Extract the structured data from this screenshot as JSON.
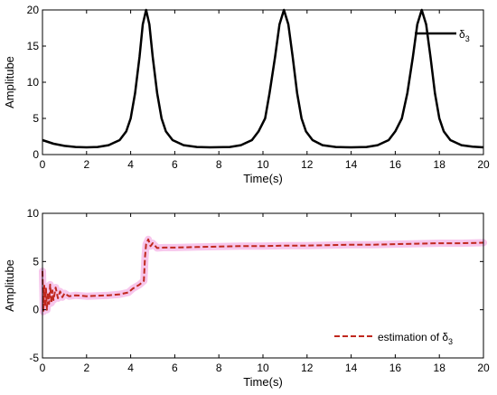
{
  "chart_data": [
    {
      "type": "line",
      "title": "",
      "xlabel": "Time(s)",
      "ylabel": "Amplitube",
      "xlim": [
        0,
        20
      ],
      "ylim": [
        0,
        20
      ],
      "xticks": [
        "0",
        "2",
        "4",
        "6",
        "8",
        "10",
        "12",
        "14",
        "16",
        "18",
        "20"
      ],
      "yticks": [
        "0",
        "5",
        "10",
        "15",
        "20"
      ],
      "grid": false,
      "legend_position": "top-right",
      "series": [
        {
          "name": "δ3",
          "legend_base": "δ",
          "legend_sub": "3",
          "color": "#000000",
          "style": "solid",
          "points": [
            [
              0,
              2.0
            ],
            [
              0.5,
              1.5
            ],
            [
              1,
              1.2
            ],
            [
              1.5,
              1.05
            ],
            [
              2,
              1.0
            ],
            [
              2.5,
              1.05
            ],
            [
              3,
              1.3
            ],
            [
              3.5,
              2.0
            ],
            [
              3.8,
              3.2
            ],
            [
              4.0,
              5.0
            ],
            [
              4.2,
              8.5
            ],
            [
              4.4,
              13.5
            ],
            [
              4.55,
              18.0
            ],
            [
              4.7,
              20.0
            ],
            [
              4.85,
              18.0
            ],
            [
              5.0,
              13.5
            ],
            [
              5.2,
              8.5
            ],
            [
              5.4,
              5.0
            ],
            [
              5.6,
              3.2
            ],
            [
              5.9,
              2.0
            ],
            [
              6.4,
              1.3
            ],
            [
              7,
              1.05
            ],
            [
              7.6,
              1.0
            ],
            [
              8.5,
              1.05
            ],
            [
              9,
              1.3
            ],
            [
              9.5,
              2.0
            ],
            [
              9.8,
              3.2
            ],
            [
              10.1,
              5.0
            ],
            [
              10.3,
              8.5
            ],
            [
              10.55,
              13.5
            ],
            [
              10.75,
              18.0
            ],
            [
              10.95,
              20.0
            ],
            [
              11.15,
              18.0
            ],
            [
              11.35,
              13.5
            ],
            [
              11.55,
              8.5
            ],
            [
              11.75,
              5.0
            ],
            [
              11.95,
              3.2
            ],
            [
              12.25,
              2.0
            ],
            [
              12.7,
              1.3
            ],
            [
              13.3,
              1.05
            ],
            [
              14,
              1.0
            ],
            [
              14.7,
              1.05
            ],
            [
              15.2,
              1.3
            ],
            [
              15.7,
              2.0
            ],
            [
              16.0,
              3.2
            ],
            [
              16.3,
              5.0
            ],
            [
              16.55,
              8.5
            ],
            [
              16.8,
              13.5
            ],
            [
              17.0,
              18.0
            ],
            [
              17.2,
              20.0
            ],
            [
              17.4,
              18.0
            ],
            [
              17.6,
              13.5
            ],
            [
              17.8,
              8.5
            ],
            [
              18.0,
              5.0
            ],
            [
              18.2,
              3.2
            ],
            [
              18.5,
              2.0
            ],
            [
              19.0,
              1.3
            ],
            [
              19.5,
              1.1
            ],
            [
              20,
              1.0
            ]
          ]
        }
      ]
    },
    {
      "type": "line",
      "title": "",
      "xlabel": "Time(s)",
      "ylabel": "Amplitube",
      "xlim": [
        0,
        20
      ],
      "ylim": [
        -5,
        10
      ],
      "xticks": [
        "0",
        "2",
        "4",
        "6",
        "8",
        "10",
        "12",
        "14",
        "16",
        "18",
        "20"
      ],
      "yticks": [
        "-5",
        "0",
        "5",
        "10"
      ],
      "grid": false,
      "legend_position": "bottom-right",
      "series": [
        {
          "name": "estimation of δ3",
          "legend_base": "estimation of δ",
          "legend_sub": "3",
          "color": "#c0281e",
          "band_color": "#f7c6ec",
          "style": "dashed",
          "points": [
            [
              0,
              4.0
            ],
            [
              0.04,
              -0.2
            ],
            [
              0.08,
              2.5
            ],
            [
              0.12,
              0.3
            ],
            [
              0.16,
              2.2
            ],
            [
              0.2,
              0.0
            ],
            [
              0.25,
              1.8
            ],
            [
              0.3,
              0.6
            ],
            [
              0.35,
              2.6
            ],
            [
              0.4,
              0.7
            ],
            [
              0.45,
              2.0
            ],
            [
              0.5,
              1.0
            ],
            [
              0.6,
              2.3
            ],
            [
              0.7,
              1.2
            ],
            [
              0.8,
              1.9
            ],
            [
              0.9,
              1.3
            ],
            [
              1.0,
              1.7
            ],
            [
              1.2,
              1.4
            ],
            [
              1.5,
              1.5
            ],
            [
              2.0,
              1.4
            ],
            [
              2.5,
              1.45
            ],
            [
              3.0,
              1.5
            ],
            [
              3.5,
              1.6
            ],
            [
              3.9,
              1.8
            ],
            [
              4.1,
              2.2
            ],
            [
              4.4,
              2.6
            ],
            [
              4.6,
              3.0
            ],
            [
              4.65,
              5.5
            ],
            [
              4.7,
              6.8
            ],
            [
              4.8,
              7.3
            ],
            [
              4.9,
              6.6
            ],
            [
              5.0,
              6.9
            ],
            [
              5.2,
              6.4
            ],
            [
              5.5,
              6.45
            ],
            [
              6,
              6.45
            ],
            [
              7,
              6.5
            ],
            [
              8,
              6.55
            ],
            [
              9,
              6.6
            ],
            [
              10,
              6.6
            ],
            [
              11,
              6.65
            ],
            [
              12,
              6.65
            ],
            [
              13,
              6.7
            ],
            [
              14,
              6.75
            ],
            [
              15,
              6.75
            ],
            [
              16,
              6.8
            ],
            [
              17,
              6.85
            ],
            [
              18,
              6.9
            ],
            [
              19,
              6.9
            ],
            [
              20,
              6.95
            ]
          ]
        }
      ]
    }
  ]
}
